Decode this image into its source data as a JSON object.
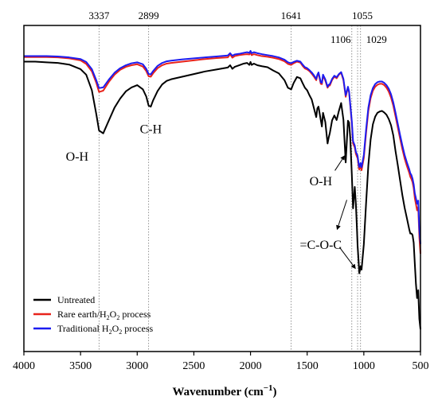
{
  "chart_data": {
    "type": "line",
    "title": "",
    "xlabel": "Wavenumber (cm",
    "xlabel_sup": "−1",
    "xlabel_close": ")",
    "ylabel": "",
    "xlim": [
      4000,
      500
    ],
    "x_reversed": true,
    "ylim": [
      0,
      1
    ],
    "y_ticks_shown": false,
    "grid": false,
    "legend_position": "bottom-left",
    "x_ticks": [
      4000,
      3500,
      3000,
      2500,
      2000,
      1500,
      1000,
      500
    ],
    "x_tick_labels": [
      "4000",
      "3500",
      "3000",
      "2500",
      "2000",
      "1500",
      "1000",
      "500"
    ],
    "peak_markers": [
      {
        "wavenumber": 3337,
        "label": "3337"
      },
      {
        "wavenumber": 2899,
        "label": "2899"
      },
      {
        "wavenumber": 1641,
        "label": "1641"
      },
      {
        "wavenumber": 1106,
        "label": "1106"
      },
      {
        "wavenumber": 1055,
        "label": "1055"
      },
      {
        "wavenumber": 1029,
        "label": "1029"
      }
    ],
    "annotations": [
      {
        "text": "O-H",
        "x": 3530,
        "y": 0.585
      },
      {
        "text": "C-H",
        "x": 2880,
        "y": 0.67
      },
      {
        "text": "O-H",
        "x": 1380,
        "y": 0.51
      },
      {
        "text": "=C-O-C",
        "x": 1380,
        "y": 0.315
      }
    ],
    "series": [
      {
        "name": "Untreated",
        "color": "#000000",
        "x": [
          4000,
          3900,
          3800,
          3700,
          3600,
          3500,
          3450,
          3400,
          3360,
          3337,
          3300,
          3260,
          3200,
          3150,
          3100,
          3050,
          3000,
          2950,
          2920,
          2899,
          2880,
          2860,
          2820,
          2780,
          2740,
          2700,
          2600,
          2500,
          2400,
          2300,
          2200,
          2180,
          2160,
          2140,
          2100,
          2060,
          2030,
          2010,
          2000,
          1990,
          1970,
          1940,
          1900,
          1850,
          1800,
          1750,
          1700,
          1670,
          1641,
          1620,
          1590,
          1560,
          1540,
          1520,
          1500,
          1480,
          1460,
          1440,
          1420,
          1410,
          1400,
          1380,
          1370,
          1360,
          1340,
          1320,
          1310,
          1300,
          1280,
          1260,
          1240,
          1220,
          1200,
          1180,
          1160,
          1140,
          1130,
          1120,
          1106,
          1095,
          1080,
          1070,
          1060,
          1055,
          1045,
          1040,
          1029,
          1020,
          1000,
          980,
          960,
          940,
          920,
          900,
          880,
          860,
          840,
          820,
          800,
          780,
          760,
          740,
          720,
          700,
          680,
          660,
          640,
          620,
          600,
          590,
          580,
          570,
          560,
          550,
          540,
          530,
          520,
          510,
          500
        ],
        "y": [
          0.889,
          0.889,
          0.887,
          0.885,
          0.88,
          0.866,
          0.849,
          0.801,
          0.726,
          0.678,
          0.669,
          0.701,
          0.748,
          0.776,
          0.798,
          0.81,
          0.817,
          0.804,
          0.782,
          0.754,
          0.751,
          0.77,
          0.799,
          0.819,
          0.83,
          0.835,
          0.843,
          0.851,
          0.859,
          0.865,
          0.871,
          0.878,
          0.867,
          0.873,
          0.878,
          0.883,
          0.885,
          0.879,
          0.888,
          0.879,
          0.883,
          0.878,
          0.875,
          0.872,
          0.862,
          0.853,
          0.832,
          0.809,
          0.804,
          0.823,
          0.842,
          0.838,
          0.823,
          0.809,
          0.801,
          0.786,
          0.773,
          0.746,
          0.719,
          0.746,
          0.751,
          0.71,
          0.69,
          0.732,
          0.704,
          0.638,
          0.656,
          0.67,
          0.709,
          0.724,
          0.71,
          0.738,
          0.762,
          0.711,
          0.58,
          0.708,
          0.702,
          0.657,
          0.544,
          0.439,
          0.505,
          0.451,
          0.371,
          0.325,
          0.271,
          0.24,
          0.261,
          0.251,
          0.329,
          0.455,
          0.572,
          0.65,
          0.697,
          0.72,
          0.732,
          0.736,
          0.738,
          0.733,
          0.726,
          0.713,
          0.694,
          0.663,
          0.614,
          0.571,
          0.525,
          0.48,
          0.441,
          0.409,
          0.376,
          0.362,
          0.362,
          0.357,
          0.334,
          0.269,
          0.207,
          0.164,
          0.188,
          0.1,
          0.068
        ]
      },
      {
        "name": "Rare earth/H",
        "name_sub1": "2",
        "name_mid": "O",
        "name_sub2": "2",
        "name_tail": " process",
        "color": "#e8231b",
        "x": [
          4000,
          3900,
          3800,
          3700,
          3600,
          3500,
          3450,
          3400,
          3360,
          3337,
          3300,
          3250,
          3200,
          3150,
          3100,
          3050,
          3000,
          2950,
          2920,
          2899,
          2880,
          2860,
          2820,
          2780,
          2740,
          2700,
          2600,
          2500,
          2400,
          2300,
          2200,
          2180,
          2160,
          2140,
          2100,
          2060,
          2030,
          2010,
          2000,
          1990,
          1970,
          1940,
          1900,
          1850,
          1800,
          1750,
          1700,
          1670,
          1641,
          1620,
          1590,
          1560,
          1540,
          1520,
          1500,
          1480,
          1460,
          1440,
          1420,
          1410,
          1400,
          1380,
          1370,
          1360,
          1340,
          1320,
          1310,
          1300,
          1280,
          1260,
          1240,
          1220,
          1200,
          1180,
          1160,
          1140,
          1130,
          1120,
          1106,
          1095,
          1080,
          1070,
          1060,
          1055,
          1045,
          1040,
          1029,
          1020,
          1000,
          980,
          960,
          940,
          920,
          900,
          880,
          860,
          840,
          820,
          800,
          780,
          760,
          740,
          720,
          700,
          680,
          660,
          640,
          620,
          600,
          590,
          580,
          570,
          560,
          550,
          540,
          530,
          520,
          510,
          500
        ],
        "y": [
          0.903,
          0.903,
          0.903,
          0.902,
          0.899,
          0.893,
          0.882,
          0.859,
          0.823,
          0.796,
          0.8,
          0.827,
          0.849,
          0.864,
          0.873,
          0.878,
          0.881,
          0.874,
          0.86,
          0.844,
          0.843,
          0.853,
          0.869,
          0.878,
          0.883,
          0.885,
          0.889,
          0.893,
          0.897,
          0.9,
          0.902,
          0.912,
          0.901,
          0.906,
          0.909,
          0.911,
          0.912,
          0.911,
          0.917,
          0.909,
          0.912,
          0.909,
          0.906,
          0.904,
          0.901,
          0.897,
          0.89,
          0.882,
          0.879,
          0.884,
          0.889,
          0.886,
          0.876,
          0.868,
          0.865,
          0.86,
          0.852,
          0.843,
          0.832,
          0.846,
          0.853,
          0.821,
          0.82,
          0.846,
          0.831,
          0.809,
          0.815,
          0.816,
          0.833,
          0.843,
          0.838,
          0.849,
          0.855,
          0.832,
          0.781,
          0.81,
          0.795,
          0.756,
          0.7,
          0.638,
          0.626,
          0.606,
          0.597,
          0.593,
          0.566,
          0.558,
          0.57,
          0.556,
          0.594,
          0.67,
          0.738,
          0.777,
          0.8,
          0.812,
          0.818,
          0.821,
          0.821,
          0.817,
          0.809,
          0.797,
          0.779,
          0.754,
          0.721,
          0.687,
          0.653,
          0.621,
          0.592,
          0.569,
          0.549,
          0.536,
          0.529,
          0.519,
          0.501,
          0.47,
          0.452,
          0.433,
          0.443,
          0.35,
          0.3
        ]
      },
      {
        "name": "Traditional H",
        "name_sub1": "2",
        "name_mid": "O",
        "name_sub2": "2",
        "name_tail": " process",
        "color": "#1c1cf0",
        "x": [
          4000,
          3900,
          3800,
          3700,
          3600,
          3500,
          3450,
          3400,
          3360,
          3337,
          3300,
          3250,
          3200,
          3150,
          3100,
          3050,
          3000,
          2950,
          2920,
          2899,
          2880,
          2860,
          2820,
          2780,
          2740,
          2700,
          2600,
          2500,
          2400,
          2300,
          2200,
          2180,
          2160,
          2140,
          2100,
          2060,
          2030,
          2010,
          2000,
          1990,
          1970,
          1940,
          1900,
          1850,
          1800,
          1750,
          1700,
          1670,
          1641,
          1620,
          1590,
          1560,
          1540,
          1520,
          1500,
          1480,
          1460,
          1440,
          1420,
          1410,
          1400,
          1380,
          1370,
          1360,
          1340,
          1320,
          1310,
          1300,
          1280,
          1260,
          1240,
          1220,
          1200,
          1180,
          1160,
          1140,
          1130,
          1120,
          1106,
          1095,
          1080,
          1070,
          1060,
          1055,
          1045,
          1040,
          1029,
          1020,
          1000,
          980,
          960,
          940,
          920,
          900,
          880,
          860,
          840,
          820,
          800,
          780,
          760,
          740,
          720,
          700,
          680,
          660,
          640,
          620,
          600,
          590,
          580,
          570,
          560,
          550,
          540,
          530,
          520,
          510,
          500
        ],
        "y": [
          0.906,
          0.906,
          0.906,
          0.905,
          0.902,
          0.897,
          0.888,
          0.866,
          0.831,
          0.808,
          0.81,
          0.834,
          0.855,
          0.869,
          0.878,
          0.884,
          0.887,
          0.881,
          0.867,
          0.851,
          0.85,
          0.86,
          0.876,
          0.885,
          0.89,
          0.892,
          0.896,
          0.899,
          0.902,
          0.905,
          0.908,
          0.915,
          0.907,
          0.911,
          0.913,
          0.916,
          0.918,
          0.916,
          0.922,
          0.915,
          0.918,
          0.915,
          0.912,
          0.909,
          0.906,
          0.902,
          0.895,
          0.887,
          0.884,
          0.888,
          0.892,
          0.889,
          0.88,
          0.872,
          0.869,
          0.863,
          0.856,
          0.847,
          0.836,
          0.849,
          0.856,
          0.826,
          0.824,
          0.849,
          0.835,
          0.812,
          0.818,
          0.82,
          0.836,
          0.846,
          0.841,
          0.851,
          0.857,
          0.836,
          0.786,
          0.812,
          0.797,
          0.759,
          0.707,
          0.645,
          0.632,
          0.612,
          0.605,
          0.6,
          0.575,
          0.566,
          0.578,
          0.565,
          0.603,
          0.681,
          0.748,
          0.786,
          0.808,
          0.82,
          0.826,
          0.828,
          0.828,
          0.824,
          0.817,
          0.806,
          0.789,
          0.764,
          0.732,
          0.698,
          0.664,
          0.632,
          0.603,
          0.58,
          0.56,
          0.547,
          0.541,
          0.53,
          0.513,
          0.485,
          0.47,
          0.453,
          0.463,
          0.372,
          0.33
        ]
      }
    ]
  }
}
